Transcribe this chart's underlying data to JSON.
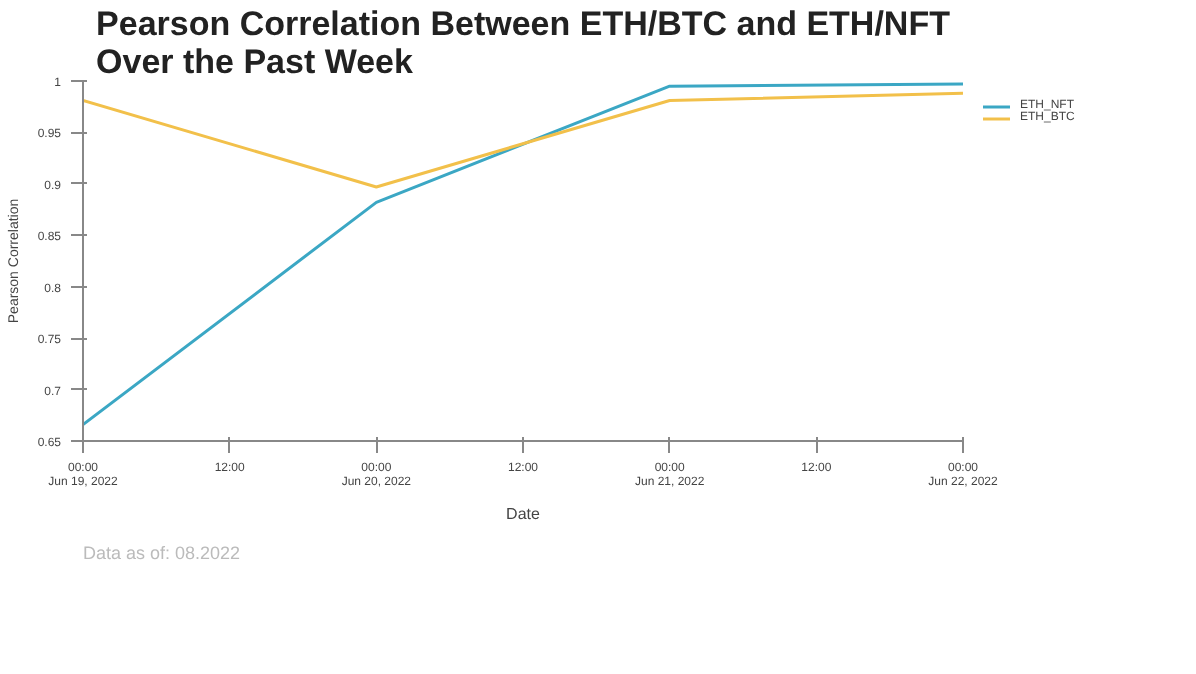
{
  "chart_data": {
    "type": "line",
    "title": "Pearson Correlation Between ETH/BTC and ETH/NFT\nOver the Past Week",
    "xlabel": "Date",
    "ylabel": "Pearson Correlation",
    "x": [
      "2022-06-19T00:00",
      "2022-06-20T00:00",
      "2022-06-21T00:00",
      "2022-06-22T00:00"
    ],
    "series": [
      {
        "name": "ETH_NFT",
        "color": "#3ba7c4",
        "values": [
          0.666,
          0.882,
          0.995,
          0.997
        ]
      },
      {
        "name": "ETH_BTC",
        "color": "#f2c04a",
        "values": [
          0.981,
          0.897,
          0.981,
          0.988
        ]
      }
    ],
    "xlim": [
      "2022-06-19T00:00",
      "2022-06-22T00:00"
    ],
    "xticks": [
      {
        "value": "2022-06-19T00:00",
        "label": "00:00\nJun 19, 2022"
      },
      {
        "value": "2022-06-19T12:00",
        "label": "12:00"
      },
      {
        "value": "2022-06-20T00:00",
        "label": "00:00\nJun 20, 2022"
      },
      {
        "value": "2022-06-20T12:00",
        "label": "12:00"
      },
      {
        "value": "2022-06-21T00:00",
        "label": "00:00\nJun 21, 2022"
      },
      {
        "value": "2022-06-21T12:00",
        "label": "12:00"
      },
      {
        "value": "2022-06-22T00:00",
        "label": "00:00\nJun 22, 2022"
      }
    ],
    "ylim": [
      0.65,
      1
    ],
    "yticks": [
      0.65,
      0.7,
      0.75,
      0.8,
      0.85,
      0.9,
      0.95,
      1
    ],
    "grid": false,
    "legend": "top right",
    "marker": "none",
    "line_style": "solid",
    "annotations": [
      "Data as of: 08.2022"
    ]
  }
}
